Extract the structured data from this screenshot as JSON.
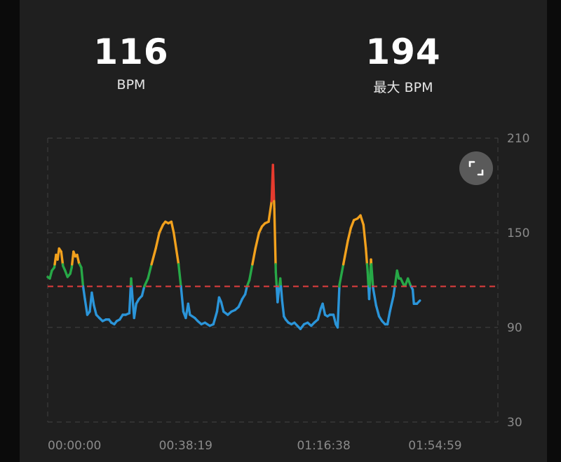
{
  "summary": {
    "avg_value": "116",
    "avg_label": "BPM",
    "max_value": "194",
    "max_label": "最大 BPM"
  },
  "icons": {
    "expand": "expand-icon"
  },
  "colors": {
    "background": "#1f1f1f",
    "zone_low": "#2b95d9",
    "zone_mid": "#27a847",
    "zone_high": "#f2a11d",
    "zone_peak": "#e63b2e",
    "reference_line": "#e23d3d",
    "grid": "#3c3c3c"
  },
  "chart_data": {
    "type": "line",
    "title": "",
    "xlabel": "",
    "ylabel": "",
    "ylim": [
      30,
      210
    ],
    "xlim": [
      0,
      7499
    ],
    "y_ticks": [
      "210",
      "150",
      "90",
      "30"
    ],
    "y_tick_values": [
      210,
      150,
      90,
      30
    ],
    "x_ticks": [
      "00:00:00",
      "00:38:19",
      "01:16:38",
      "01:54:59"
    ],
    "x_tick_values": [
      0,
      2299,
      4598,
      6899
    ],
    "grid": true,
    "reference_line": {
      "value": 116,
      "style": "dashed"
    },
    "zones": [
      {
        "from": 30,
        "to": 116,
        "color": "#2b95d9"
      },
      {
        "from": 116,
        "to": 130,
        "color": "#27a847"
      },
      {
        "from": 130,
        "to": 170,
        "color": "#f2a11d"
      },
      {
        "from": 170,
        "to": 210,
        "color": "#e63b2e"
      }
    ],
    "series": [
      {
        "points": [
          [
            0,
            122
          ],
          [
            35,
            121
          ],
          [
            70,
            126
          ],
          [
            110,
            128
          ],
          [
            140,
            136
          ],
          [
            165,
            133
          ],
          [
            190,
            140
          ],
          [
            225,
            138
          ],
          [
            255,
            129
          ],
          [
            290,
            126
          ],
          [
            330,
            122
          ],
          [
            375,
            124
          ],
          [
            400,
            128
          ],
          [
            430,
            138
          ],
          [
            460,
            135
          ],
          [
            490,
            136
          ],
          [
            520,
            131
          ],
          [
            560,
            128
          ],
          [
            590,
            116
          ],
          [
            620,
            108
          ],
          [
            660,
            98
          ],
          [
            700,
            100
          ],
          [
            735,
            112
          ],
          [
            770,
            104
          ],
          [
            810,
            98
          ],
          [
            860,
            96
          ],
          [
            915,
            94
          ],
          [
            970,
            95
          ],
          [
            1020,
            95
          ],
          [
            1060,
            93
          ],
          [
            1110,
            92
          ],
          [
            1150,
            94
          ],
          [
            1200,
            95
          ],
          [
            1250,
            98
          ],
          [
            1300,
            98
          ],
          [
            1360,
            99
          ],
          [
            1390,
            121
          ],
          [
            1410,
            110
          ],
          [
            1440,
            96
          ],
          [
            1475,
            105
          ],
          [
            1520,
            108
          ],
          [
            1570,
            110
          ],
          [
            1610,
            116
          ],
          [
            1670,
            121
          ],
          [
            1730,
            130
          ],
          [
            1800,
            140
          ],
          [
            1860,
            150
          ],
          [
            1920,
            155
          ],
          [
            1960,
            157
          ],
          [
            2010,
            156
          ],
          [
            2060,
            157
          ],
          [
            2100,
            150
          ],
          [
            2140,
            140
          ],
          [
            2180,
            130
          ],
          [
            2220,
            116
          ],
          [
            2260,
            100
          ],
          [
            2300,
            96
          ],
          [
            2340,
            105
          ],
          [
            2370,
            98
          ],
          [
            2410,
            97
          ],
          [
            2450,
            96
          ],
          [
            2500,
            94
          ],
          [
            2560,
            92
          ],
          [
            2620,
            93
          ],
          [
            2700,
            91
          ],
          [
            2760,
            92
          ],
          [
            2820,
            100
          ],
          [
            2855,
            109
          ],
          [
            2890,
            106
          ],
          [
            2930,
            100
          ],
          [
            3000,
            98
          ],
          [
            3060,
            100
          ],
          [
            3120,
            101
          ],
          [
            3180,
            103
          ],
          [
            3240,
            108
          ],
          [
            3290,
            111
          ],
          [
            3320,
            116
          ],
          [
            3360,
            120
          ],
          [
            3410,
            130
          ],
          [
            3460,
            140
          ],
          [
            3520,
            150
          ],
          [
            3570,
            154
          ],
          [
            3620,
            156
          ],
          [
            3680,
            157
          ],
          [
            3730,
            170
          ],
          [
            3752,
            193
          ],
          [
            3775,
            165
          ],
          [
            3800,
            125
          ],
          [
            3830,
            106
          ],
          [
            3855,
            115
          ],
          [
            3875,
            121
          ],
          [
            3905,
            107
          ],
          [
            3935,
            97
          ],
          [
            3965,
            95
          ],
          [
            4010,
            93
          ],
          [
            4060,
            92
          ],
          [
            4110,
            93
          ],
          [
            4160,
            91
          ],
          [
            4210,
            89
          ],
          [
            4270,
            92
          ],
          [
            4330,
            93
          ],
          [
            4390,
            91
          ],
          [
            4440,
            93
          ],
          [
            4500,
            95
          ],
          [
            4550,
            102
          ],
          [
            4580,
            105
          ],
          [
            4620,
            98
          ],
          [
            4660,
            97
          ],
          [
            4700,
            98
          ],
          [
            4760,
            98
          ],
          [
            4800,
            92
          ],
          [
            4830,
            90
          ],
          [
            4860,
            117
          ],
          [
            4900,
            125
          ],
          [
            4950,
            135
          ],
          [
            5000,
            145
          ],
          [
            5050,
            153
          ],
          [
            5100,
            158
          ],
          [
            5160,
            159
          ],
          [
            5210,
            161
          ],
          [
            5260,
            155
          ],
          [
            5300,
            140
          ],
          [
            5330,
            125
          ],
          [
            5355,
            108
          ],
          [
            5385,
            133
          ],
          [
            5420,
            115
          ],
          [
            5470,
            104
          ],
          [
            5520,
            97
          ],
          [
            5570,
            94
          ],
          [
            5620,
            92
          ],
          [
            5660,
            92
          ],
          [
            5700,
            100
          ],
          [
            5760,
            110
          ],
          [
            5820,
            126
          ],
          [
            5850,
            121
          ],
          [
            5880,
            121
          ],
          [
            5930,
            117
          ],
          [
            5960,
            117
          ],
          [
            6000,
            121
          ],
          [
            6040,
            117
          ],
          [
            6080,
            114
          ],
          [
            6100,
            105
          ],
          [
            6150,
            105
          ],
          [
            6200,
            107
          ]
        ]
      }
    ]
  }
}
